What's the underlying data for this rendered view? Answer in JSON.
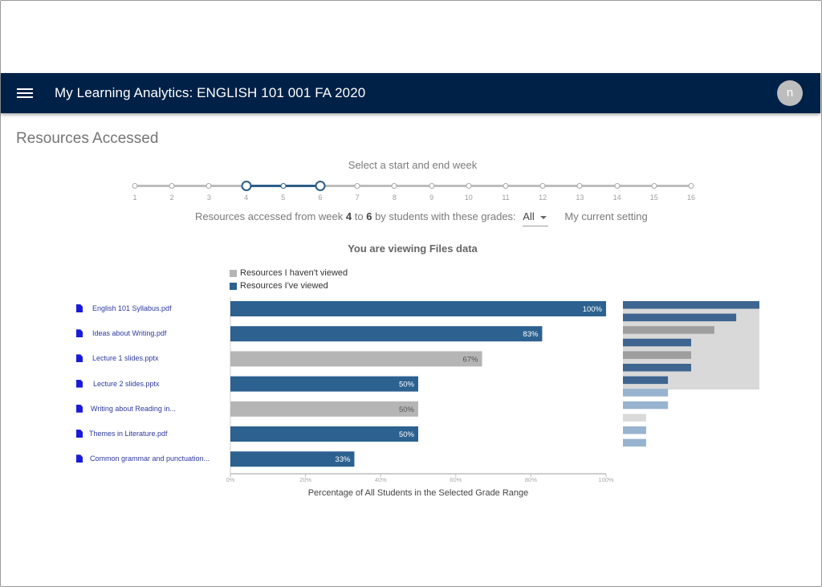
{
  "app": {
    "title": "My Learning Analytics: ENGLISH 101 001 FA 2020",
    "menu_icon": "hamburger-menu-icon",
    "avatar_initial": "n"
  },
  "page": {
    "title": "Resources Accessed"
  },
  "week_selector": {
    "label": "Select a start and end week",
    "weeks": [
      "1",
      "2",
      "3",
      "4",
      "5",
      "6",
      "7",
      "8",
      "9",
      "10",
      "11",
      "12",
      "13",
      "14",
      "15",
      "16"
    ],
    "start_week": 4,
    "end_week": 6
  },
  "summary": {
    "prefix": "Resources accessed from week",
    "start": "4",
    "to": "to",
    "end": "6",
    "suffix": "by students with these grades:",
    "grade_value": "All",
    "current_setting": "My current setting"
  },
  "viewing_label": "You are viewing Files data",
  "colors": {
    "appbar": "#002147",
    "viewed": "#2c6190",
    "not_viewed": "#b5b5b5",
    "accent": "#2c5e88"
  },
  "chart_data": {
    "type": "bar",
    "orientation": "horizontal",
    "xlabel": "Percentage of All Students in the Selected Grade Range",
    "xlim": [
      0,
      100
    ],
    "xticks": [
      "0%",
      "20%",
      "40%",
      "60%",
      "80%",
      "100%"
    ],
    "legend": [
      {
        "name": "Resources I haven't viewed",
        "color": "#b5b5b5"
      },
      {
        "name": "Resources I've viewed",
        "color": "#2c6190"
      }
    ],
    "legend_position": "top-left",
    "categories": [
      "English 101 Syllabus.pdf",
      "Ideas about Writing.pdf",
      "Lecture 1 slides.pptx",
      "Lecture 2 slides.pptx",
      "Writing about Reading in...",
      "Themes in Literature.pdf",
      "Common grammar and punctuation..."
    ],
    "values": [
      100,
      83,
      67,
      50,
      50,
      50,
      33
    ],
    "labels": [
      "100%",
      "83%",
      "67%",
      "50%",
      "50%",
      "50%",
      "33%"
    ],
    "viewed": [
      true,
      true,
      false,
      true,
      false,
      true,
      true
    ]
  },
  "minimap": {
    "values": [
      100,
      83,
      67,
      50,
      50,
      50,
      33,
      33,
      33,
      17,
      17,
      17
    ],
    "kind": [
      "viewed",
      "viewed",
      "not_viewed",
      "viewed",
      "not_viewed",
      "viewed",
      "viewed",
      "viewed_out",
      "viewed_out",
      "not_viewed_out",
      "viewed_out",
      "viewed_out"
    ],
    "visible_rows": 7
  }
}
